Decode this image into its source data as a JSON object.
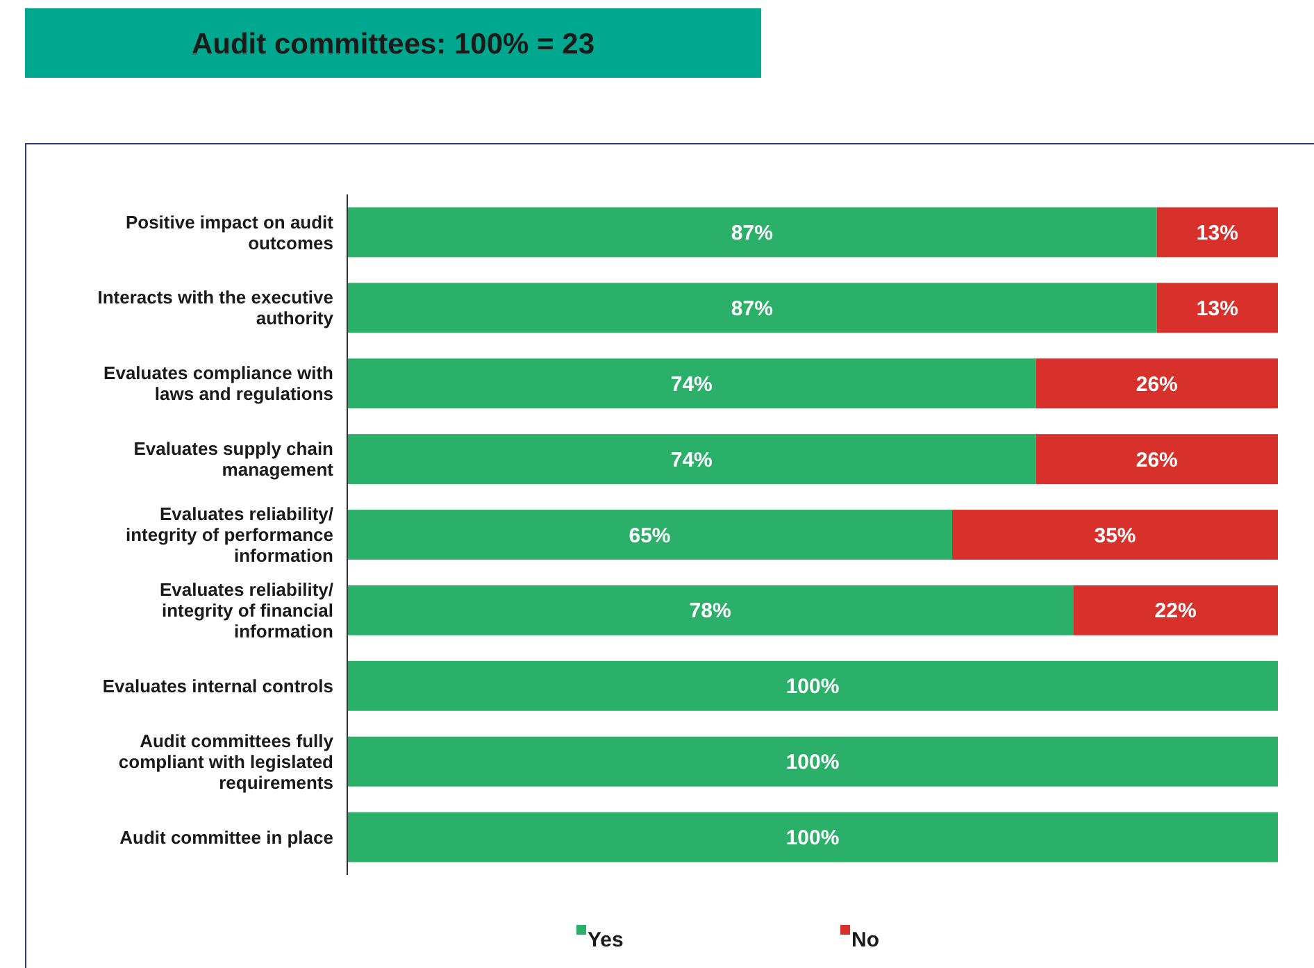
{
  "chart_data": {
    "type": "bar",
    "orientation": "horizontal",
    "stacked": true,
    "title": "Audit committees: 100% = 23",
    "categories": [
      "Positive impact on audit outcomes",
      "Interacts with the executive authority",
      "Evaluates compliance with laws and regulations",
      "Evaluates supply chain management",
      "Evaluates reliability/ integrity of performance information",
      "Evaluates reliability/ integrity of financial information",
      "Evaluates internal controls",
      "Audit committees fully compliant with legislated requirements",
      "Audit committee in place"
    ],
    "series": [
      {
        "name": "Yes",
        "color": "#2bb06a",
        "values": [
          87,
          87,
          74,
          74,
          65,
          78,
          100,
          100,
          100
        ],
        "value_labels": [
          "87%",
          "87%",
          "74%",
          "74%",
          "65%",
          "78%",
          "100%",
          "100%",
          "100%"
        ]
      },
      {
        "name": "No",
        "color": "#d8312c",
        "values": [
          13,
          13,
          26,
          26,
          35,
          22,
          null,
          null,
          null
        ],
        "value_labels": [
          "13%",
          "13%",
          "26%",
          "26%",
          "35%",
          "22%",
          null,
          null,
          null
        ]
      }
    ],
    "legend": "bottom"
  }
}
